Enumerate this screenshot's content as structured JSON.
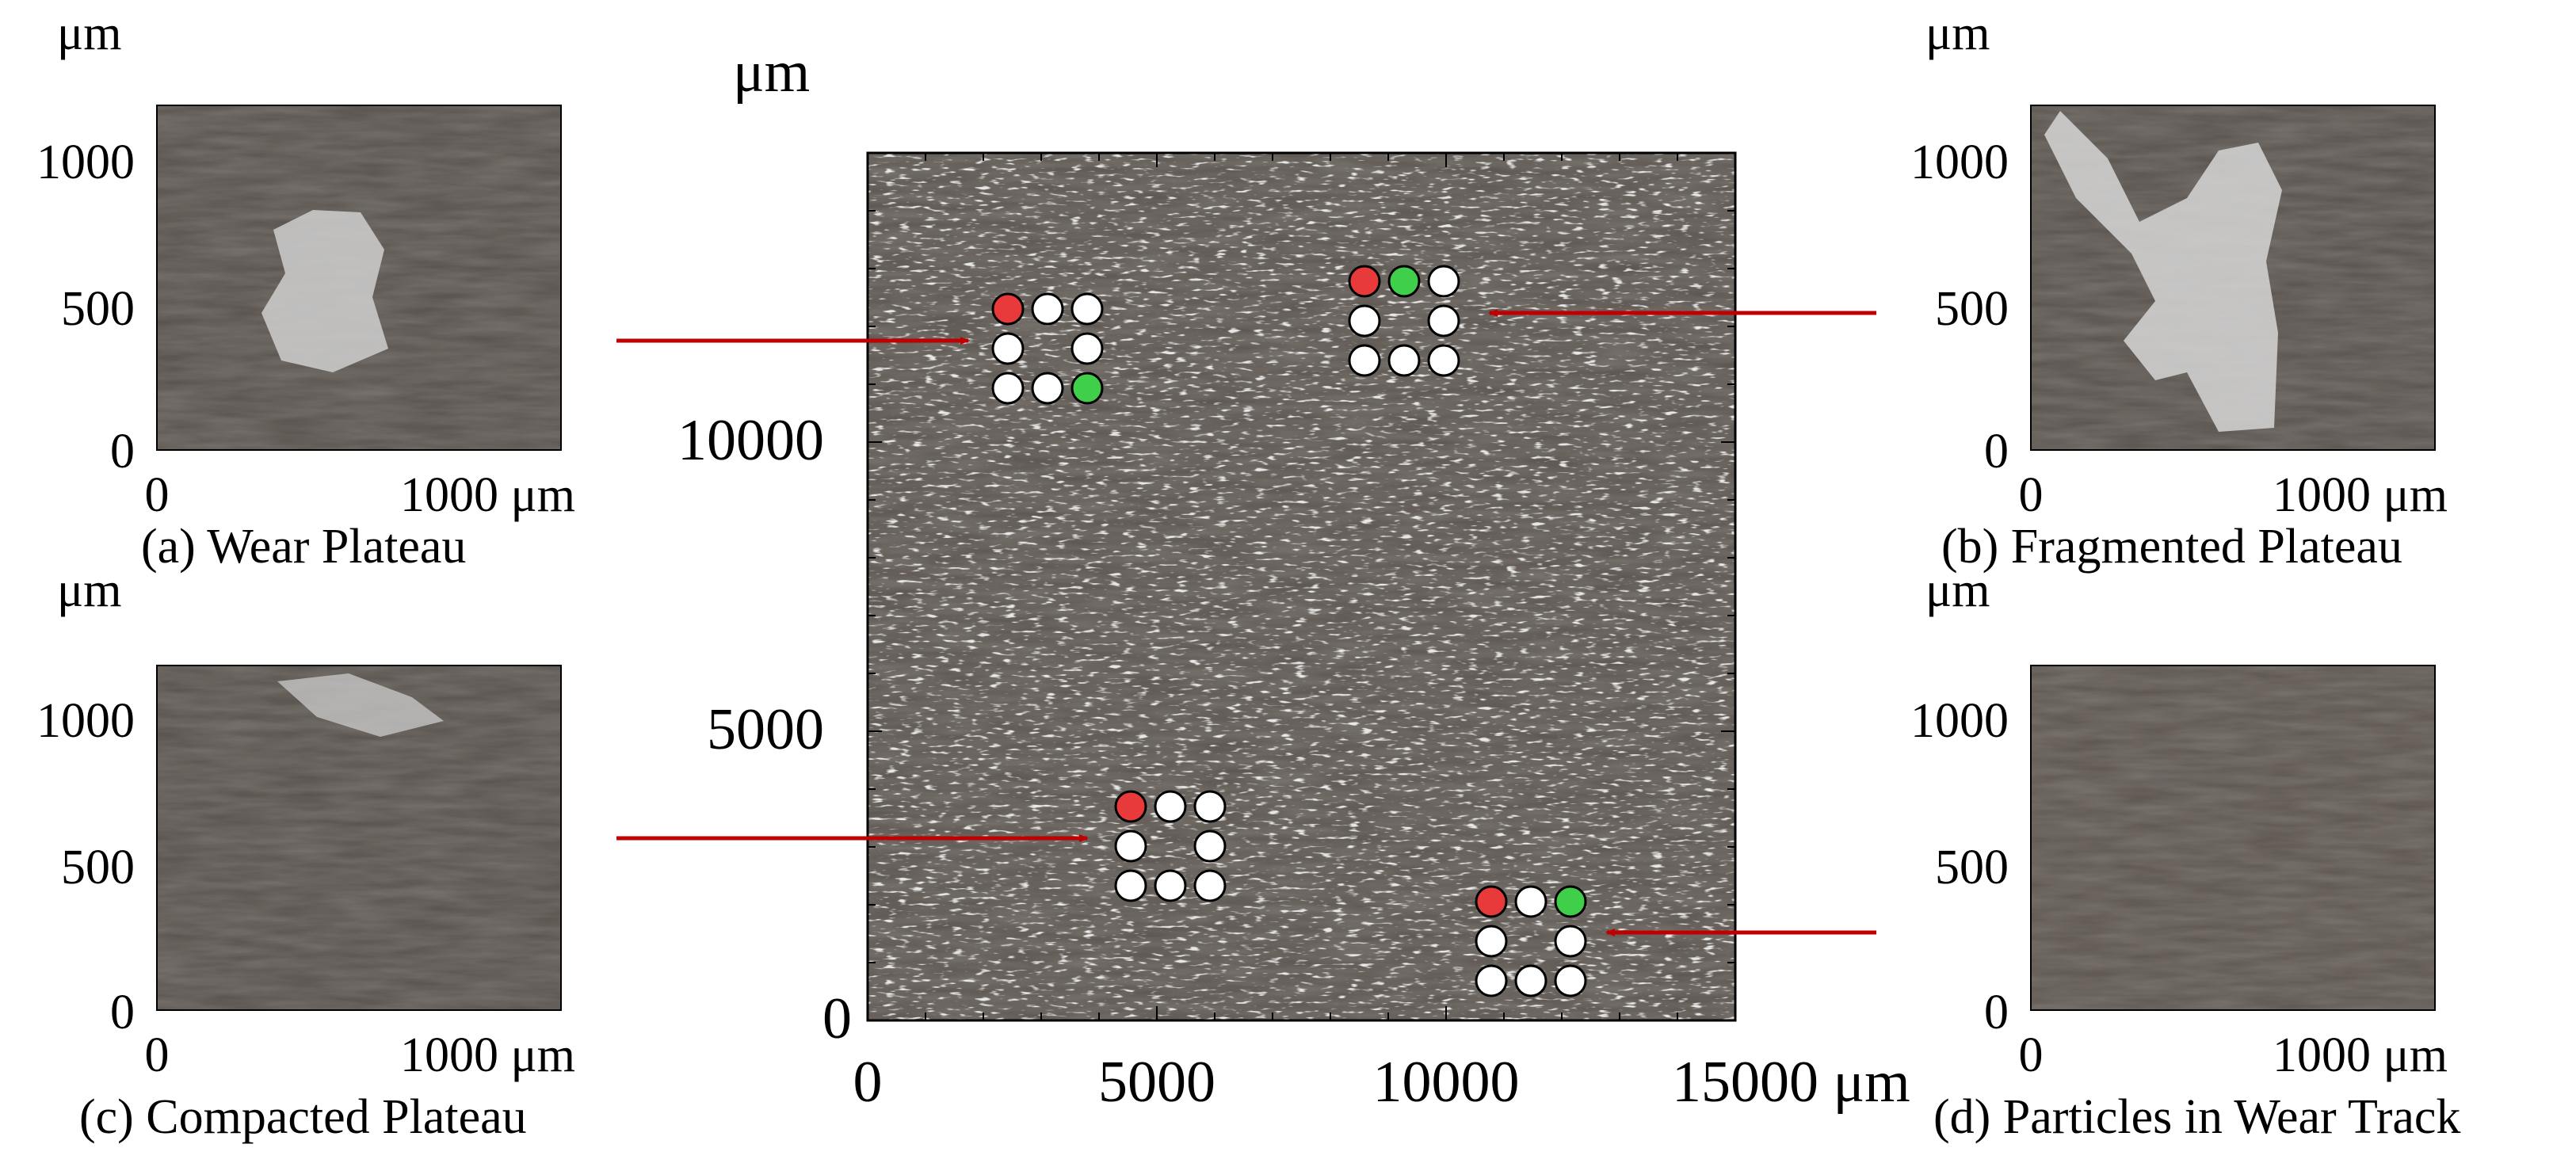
{
  "colors": {
    "arrow": "#c00000",
    "surface_dark": "#4a4440",
    "surface_light": "#d8d8d8",
    "marker_red": "#e83a3a",
    "marker_green": "#3fcf4a",
    "marker_white": "#ffffff"
  },
  "main_panel": {
    "unit_label": "μm",
    "x_ticks": [
      "0",
      "5000",
      "10000",
      "15000 μm"
    ],
    "y_ticks": [
      "0",
      "5000",
      "10000"
    ],
    "xlim": [
      0,
      15000
    ],
    "ylim": [
      0,
      15000
    ]
  },
  "insets": [
    {
      "id": "a",
      "caption": "(a) Wear Plateau",
      "unit_label": "μm",
      "y_ticks": [
        "0",
        "500",
        "1000"
      ],
      "x_ticks": [
        "0",
        "1000 μm"
      ]
    },
    {
      "id": "b",
      "caption": "(b) Fragmented Plateau",
      "unit_label": "μm",
      "y_ticks": [
        "0",
        "500",
        "1000"
      ],
      "x_ticks": [
        "0",
        "1000 μm"
      ]
    },
    {
      "id": "c",
      "caption": "(c) Compacted Plateau",
      "unit_label": "μm",
      "y_ticks": [
        "0",
        "500",
        "1000"
      ],
      "x_ticks": [
        "0",
        "1000 μm"
      ]
    },
    {
      "id": "d",
      "caption": "(d) Particles in Wear Track",
      "unit_label": "μm",
      "y_ticks": [
        "0",
        "500",
        "1000"
      ],
      "x_ticks": [
        "0",
        "1000 μm"
      ]
    }
  ],
  "markers": [
    {
      "target": "a",
      "red": 0,
      "green": 4
    },
    {
      "target": "b",
      "red": 0,
      "green": 1
    },
    {
      "target": "c",
      "red": 0,
      "green": -1
    },
    {
      "target": "d",
      "red": 0,
      "green": 2
    }
  ]
}
